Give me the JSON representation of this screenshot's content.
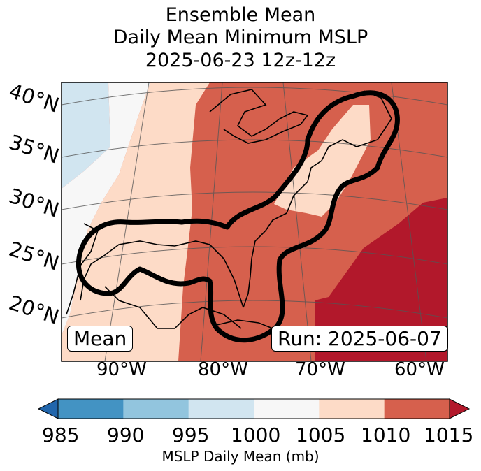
{
  "title": {
    "line1": "Ensemble Mean",
    "line2": "Daily Mean Minimum MSLP",
    "line3": "2025-06-23 12z-12z"
  },
  "lat_labels": [
    "40°N",
    "35°N",
    "30°N",
    "25°N",
    "20°N"
  ],
  "lon_labels": [
    "90°W",
    "80°W",
    "70°W",
    "60°W"
  ],
  "mean_label": "Mean",
  "run_label": "Run: 2025-06-07",
  "colorbar": {
    "ticks": [
      "985",
      "990",
      "995",
      "1000",
      "1005",
      "1010",
      "1015"
    ],
    "label": "MSLP Daily Mean (mb)",
    "colors": [
      "#2166ac",
      "#4393c3",
      "#92c5de",
      "#d1e5f0",
      "#f7f7f7",
      "#fddbc7",
      "#d6604d",
      "#b2182b"
    ]
  }
}
